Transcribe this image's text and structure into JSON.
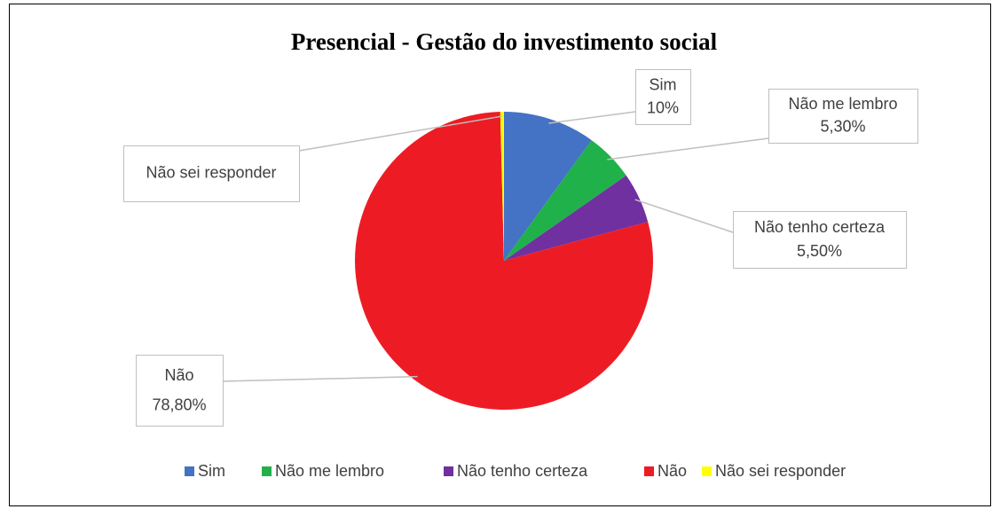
{
  "chart_data": {
    "type": "pie",
    "title": "Presencial - Gestão do investimento social",
    "categories": [
      "Sim",
      "Não me lembro",
      "Não tenho certeza",
      "Não",
      "Não sei responder"
    ],
    "values": [
      10,
      5.3,
      5.5,
      78.8,
      0.4
    ],
    "value_labels": [
      "10%",
      "5,30%",
      "5,50%",
      "78,80%",
      null
    ],
    "colors": [
      "#4472c4",
      "#21b14b",
      "#7030a0",
      "#ed1c24",
      "#ffff00"
    ],
    "legend": "bottom"
  }
}
